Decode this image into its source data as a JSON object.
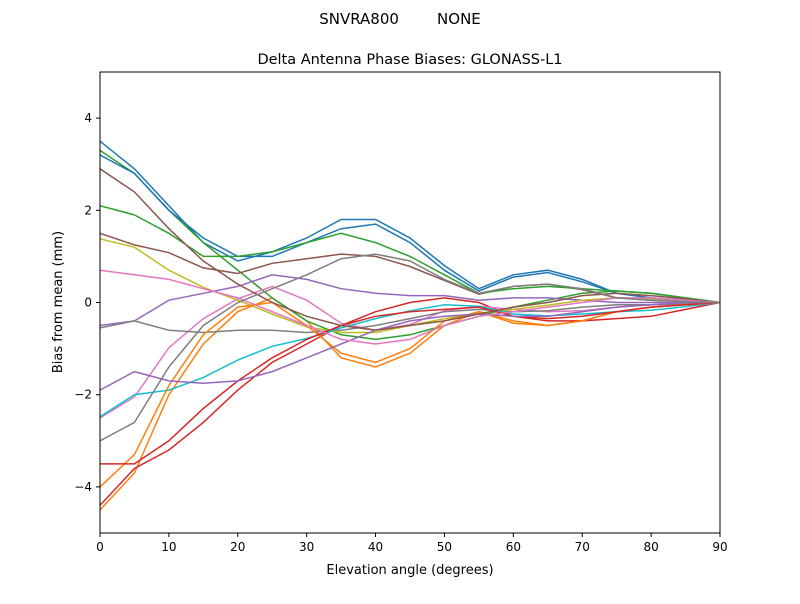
{
  "chart_data": {
    "type": "line",
    "suptitle": "SNVRA800        NONE",
    "title": "Delta Antenna Phase Biases: GLONASS-L1",
    "xlabel": "Elevation angle (degrees)",
    "ylabel": "Bias from mean (mm)",
    "xlim": [
      0,
      90
    ],
    "ylim": [
      -5,
      5
    ],
    "xticks": [
      0,
      10,
      20,
      30,
      40,
      50,
      60,
      70,
      80,
      90
    ],
    "yticks": [
      -4,
      -2,
      0,
      2,
      4
    ],
    "grid": false,
    "colors": [
      "#1f77b4",
      "#ff7f0e",
      "#2ca02c",
      "#d62728",
      "#9467bd",
      "#8c564b",
      "#e377c2",
      "#7f7f7f",
      "#bcbd22",
      "#17becf"
    ],
    "x": [
      0,
      5,
      10,
      15,
      20,
      25,
      30,
      35,
      40,
      45,
      50,
      55,
      60,
      65,
      70,
      75,
      80,
      85,
      90
    ],
    "series": [
      {
        "values": [
          3.5,
          2.9,
          2.1,
          1.3,
          0.9,
          1.1,
          1.4,
          1.8,
          1.8,
          1.4,
          0.8,
          0.3,
          0.6,
          0.7,
          0.5,
          0.2,
          0.1,
          0.05,
          0
        ]
      },
      {
        "values": [
          -4.5,
          -3.7,
          -2.0,
          -0.9,
          -0.2,
          0.1,
          -0.4,
          -1.2,
          -1.4,
          -1.1,
          -0.5,
          -0.2,
          -0.4,
          -0.5,
          -0.4,
          -0.2,
          -0.1,
          -0.05,
          0
        ]
      },
      {
        "values": [
          3.3,
          2.8,
          2.0,
          1.3,
          0.7,
          0.1,
          -0.4,
          -0.7,
          -0.8,
          -0.7,
          -0.5,
          -0.3,
          -0.1,
          0.05,
          0.2,
          0.25,
          0.2,
          0.1,
          0
        ]
      },
      {
        "values": [
          -4.4,
          -3.6,
          -3.2,
          -2.6,
          -1.9,
          -1.3,
          -0.9,
          -0.5,
          -0.2,
          0.0,
          0.1,
          0.0,
          -0.3,
          -0.4,
          -0.4,
          -0.35,
          -0.3,
          -0.15,
          0
        ]
      },
      {
        "values": [
          -0.5,
          -0.4,
          0.05,
          0.2,
          0.35,
          0.6,
          0.5,
          0.3,
          0.2,
          0.15,
          0.15,
          0.05,
          0.1,
          0.1,
          0.05,
          0,
          0,
          0,
          0
        ]
      },
      {
        "values": [
          1.5,
          1.25,
          1.08,
          0.75,
          0.63,
          0.85,
          0.95,
          1.05,
          1.0,
          0.78,
          0.48,
          0.18,
          0.35,
          0.4,
          0.28,
          0.1,
          0.05,
          0.03,
          0
        ]
      },
      {
        "values": [
          -2.5,
          -2.05,
          -0.98,
          -0.35,
          0.08,
          0.35,
          0.05,
          -0.45,
          -0.6,
          -0.48,
          -0.18,
          -0.08,
          -0.15,
          -0.2,
          -0.18,
          -0.1,
          -0.05,
          -0.03,
          0
        ]
      },
      {
        "values": [
          -0.55,
          -0.4,
          -0.6,
          -0.65,
          -0.6,
          -0.6,
          -0.65,
          -0.6,
          -0.5,
          -0.35,
          -0.2,
          -0.15,
          -0.2,
          -0.18,
          -0.1,
          -0.05,
          -0.05,
          -0.03,
          0
        ]
      },
      {
        "values": [
          1.38,
          1.2,
          0.7,
          0.33,
          0.05,
          -0.25,
          -0.53,
          -0.65,
          -0.65,
          -0.5,
          -0.35,
          -0.23,
          -0.15,
          -0.06,
          0.05,
          0.1,
          0.08,
          0.04,
          0
        ]
      },
      {
        "values": [
          -2.48,
          -2.0,
          -1.9,
          -1.63,
          -1.25,
          -0.95,
          -0.78,
          -0.55,
          -0.35,
          -0.18,
          -0.05,
          -0.08,
          -0.25,
          -0.29,
          -0.25,
          -0.2,
          -0.17,
          -0.09,
          0
        ]
      },
      {
        "values": [
          3.2,
          2.8,
          2.0,
          1.4,
          1.0,
          1.0,
          1.3,
          1.6,
          1.7,
          1.3,
          0.7,
          0.25,
          0.55,
          0.65,
          0.45,
          0.2,
          0.1,
          0.05,
          0
        ]
      },
      {
        "values": [
          -4.0,
          -3.3,
          -1.8,
          -0.7,
          -0.1,
          0.0,
          -0.5,
          -1.1,
          -1.3,
          -1.0,
          -0.4,
          -0.2,
          -0.45,
          -0.5,
          -0.4,
          -0.2,
          -0.1,
          -0.05,
          0
        ]
      },
      {
        "values": [
          2.1,
          1.9,
          1.5,
          1.0,
          1.0,
          1.1,
          1.3,
          1.5,
          1.3,
          1.0,
          0.6,
          0.2,
          0.3,
          0.35,
          0.3,
          0.25,
          0.2,
          0.1,
          0
        ]
      },
      {
        "values": [
          -3.5,
          -3.5,
          -3.0,
          -2.3,
          -1.7,
          -1.2,
          -0.8,
          -0.5,
          -0.3,
          -0.2,
          -0.15,
          -0.1,
          -0.3,
          -0.35,
          -0.3,
          -0.2,
          -0.1,
          -0.05,
          0
        ]
      },
      {
        "values": [
          -1.9,
          -1.5,
          -1.7,
          -1.75,
          -1.7,
          -1.5,
          -1.2,
          -0.9,
          -0.6,
          -0.4,
          -0.3,
          -0.25,
          -0.3,
          -0.3,
          -0.2,
          -0.1,
          -0.05,
          0,
          0
        ]
      },
      {
        "values": [
          2.9,
          2.4,
          1.6,
          0.9,
          0.4,
          0.0,
          -0.3,
          -0.5,
          -0.6,
          -0.5,
          -0.4,
          -0.25,
          -0.1,
          0.0,
          0.15,
          0.2,
          0.15,
          0.08,
          0
        ]
      },
      {
        "values": [
          0.7,
          0.6,
          0.5,
          0.3,
          0.1,
          -0.2,
          -0.5,
          -0.8,
          -0.9,
          -0.8,
          -0.5,
          -0.3,
          -0.2,
          -0.1,
          0.0,
          0.1,
          0.1,
          0.05,
          0
        ]
      },
      {
        "values": [
          -3.0,
          -2.6,
          -1.4,
          -0.5,
          0.0,
          0.3,
          0.6,
          0.95,
          1.05,
          0.9,
          0.5,
          0.2,
          0.35,
          0.4,
          0.3,
          0.1,
          0.05,
          0.02,
          0
        ]
      }
    ]
  }
}
